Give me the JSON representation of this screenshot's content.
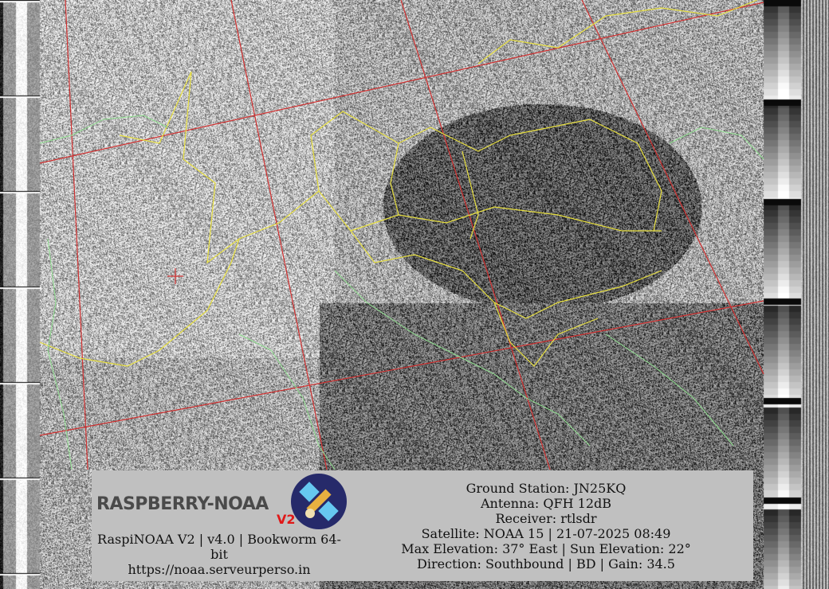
{
  "image": {
    "type": "NOAA APT satellite image",
    "overlay_colors": {
      "grid": "#d03030",
      "borders": "#e8e040",
      "coastlines": "#90e090"
    }
  },
  "logo": {
    "text": "RASPBERRY-NOAA",
    "suffix": "V2",
    "icon": "satellite-icon"
  },
  "left_info": {
    "version_line": "RaspiNOAA V2 | v4.0 | Bookworm 64-",
    "version_line_wrap": "bit",
    "url": "https://noaa.serveurperso.in"
  },
  "right_info": {
    "ground_station": "Ground Station: JN25KQ",
    "antenna": "Antenna: QFH 12dB",
    "receiver": "Receiver: rtlsdr",
    "satellite": "Satellite: NOAA 15 | 21-07-2025 08:49",
    "elevation": "Max Elevation: 37° East | Sun Elevation: 22°",
    "direction": "Direction: Southbound | BD | Gain: 34.5"
  }
}
